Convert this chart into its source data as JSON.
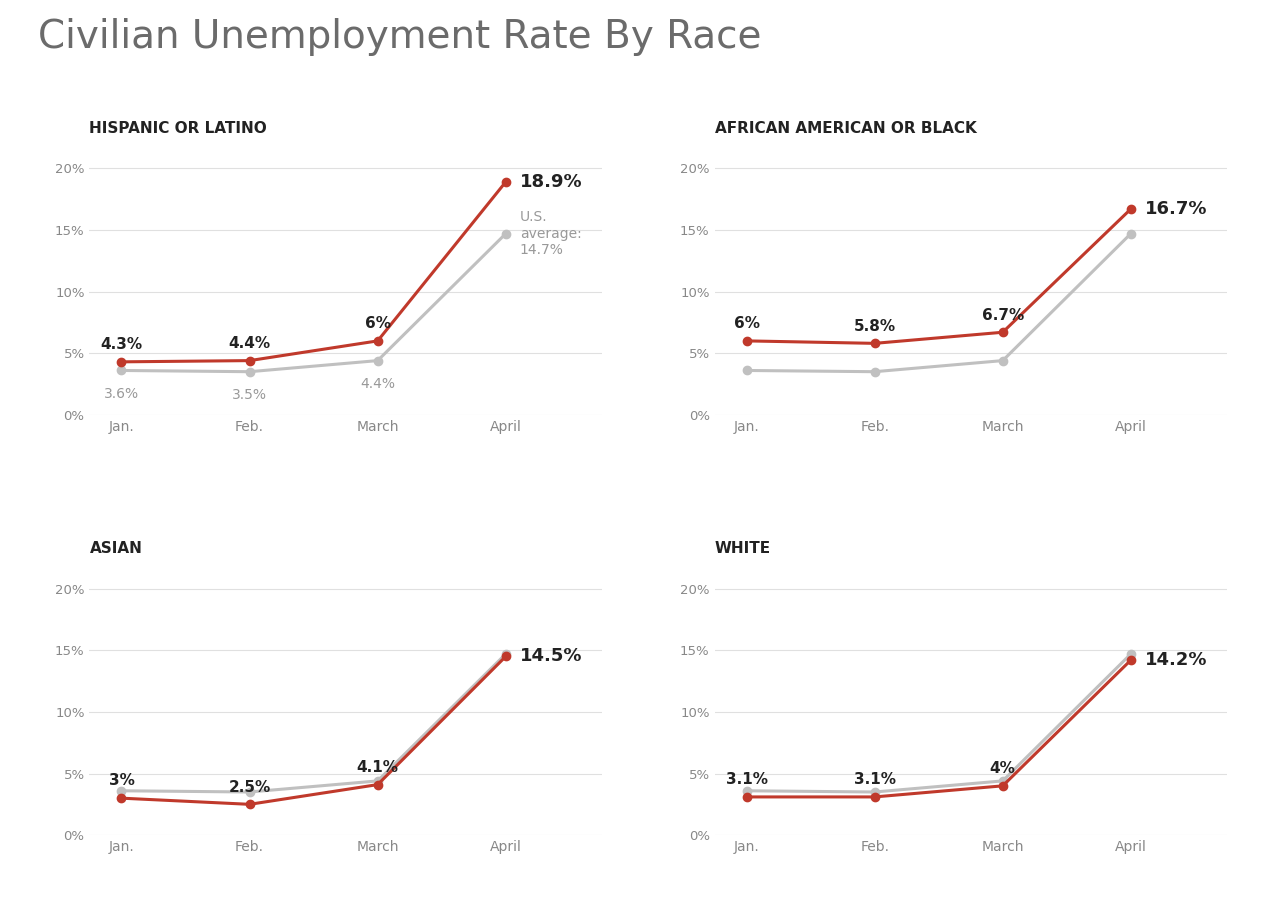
{
  "title": "Civilian Unemployment Rate By Race",
  "title_color": "#6b6b6b",
  "title_fontsize": 28,
  "background_color": "#ffffff",
  "subplots": [
    {
      "label": "HISPANIC OR LATINO",
      "months": [
        "Jan.",
        "Feb.",
        "March",
        "April"
      ],
      "race_values": [
        4.3,
        4.4,
        6.0,
        18.9
      ],
      "avg_values": [
        3.6,
        3.5,
        4.4,
        14.7
      ],
      "race_labels": [
        "4.3%",
        "4.4%",
        "6%"
      ],
      "avg_labels": [
        "3.6%",
        "3.5%",
        "4.4%"
      ],
      "last_label_race": "18.9%",
      "last_label_avg": "U.S.\naverage:\n14.7%",
      "show_avg_labels": true,
      "ylim": [
        0,
        22
      ]
    },
    {
      "label": "AFRICAN AMERICAN OR BLACK",
      "months": [
        "Jan.",
        "Feb.",
        "March",
        "April"
      ],
      "race_values": [
        6.0,
        5.8,
        6.7,
        16.7
      ],
      "avg_values": [
        3.6,
        3.5,
        4.4,
        14.7
      ],
      "race_labels": [
        "6%",
        "5.8%",
        "6.7%"
      ],
      "avg_labels": [
        "",
        "",
        ""
      ],
      "last_label_race": "16.7%",
      "last_label_avg": "",
      "show_avg_labels": false,
      "ylim": [
        0,
        22
      ]
    },
    {
      "label": "ASIAN",
      "months": [
        "Jan.",
        "Feb.",
        "March",
        "April"
      ],
      "race_values": [
        3.0,
        2.5,
        4.1,
        14.5
      ],
      "avg_values": [
        3.6,
        3.5,
        4.4,
        14.7
      ],
      "race_labels": [
        "3%",
        "2.5%",
        "4.1%"
      ],
      "avg_labels": [
        "",
        "",
        ""
      ],
      "last_label_race": "14.5%",
      "last_label_avg": "",
      "show_avg_labels": false,
      "ylim": [
        0,
        22
      ]
    },
    {
      "label": "WHITE",
      "months": [
        "Jan.",
        "Feb.",
        "March",
        "April"
      ],
      "race_values": [
        3.1,
        3.1,
        4.0,
        14.2
      ],
      "avg_values": [
        3.6,
        3.5,
        4.4,
        14.7
      ],
      "race_labels": [
        "3.1%",
        "3.1%",
        "4%"
      ],
      "avg_labels": [
        "",
        "",
        ""
      ],
      "last_label_race": "14.2%",
      "last_label_avg": "",
      "show_avg_labels": false,
      "ylim": [
        0,
        22
      ]
    }
  ],
  "race_color": "#C0392B",
  "avg_color": "#C0C0C0",
  "line_width": 2.2,
  "marker_size": 6,
  "yticks": [
    0,
    5,
    10,
    15,
    20
  ],
  "ytick_labels": [
    "0%",
    "5%",
    "10%",
    "15%",
    "20%"
  ],
  "sublabel_fontsize": 11,
  "annotation_fontsize": 11,
  "last_annotation_fontsize": 13,
  "avg_annotation_fontsize": 10
}
